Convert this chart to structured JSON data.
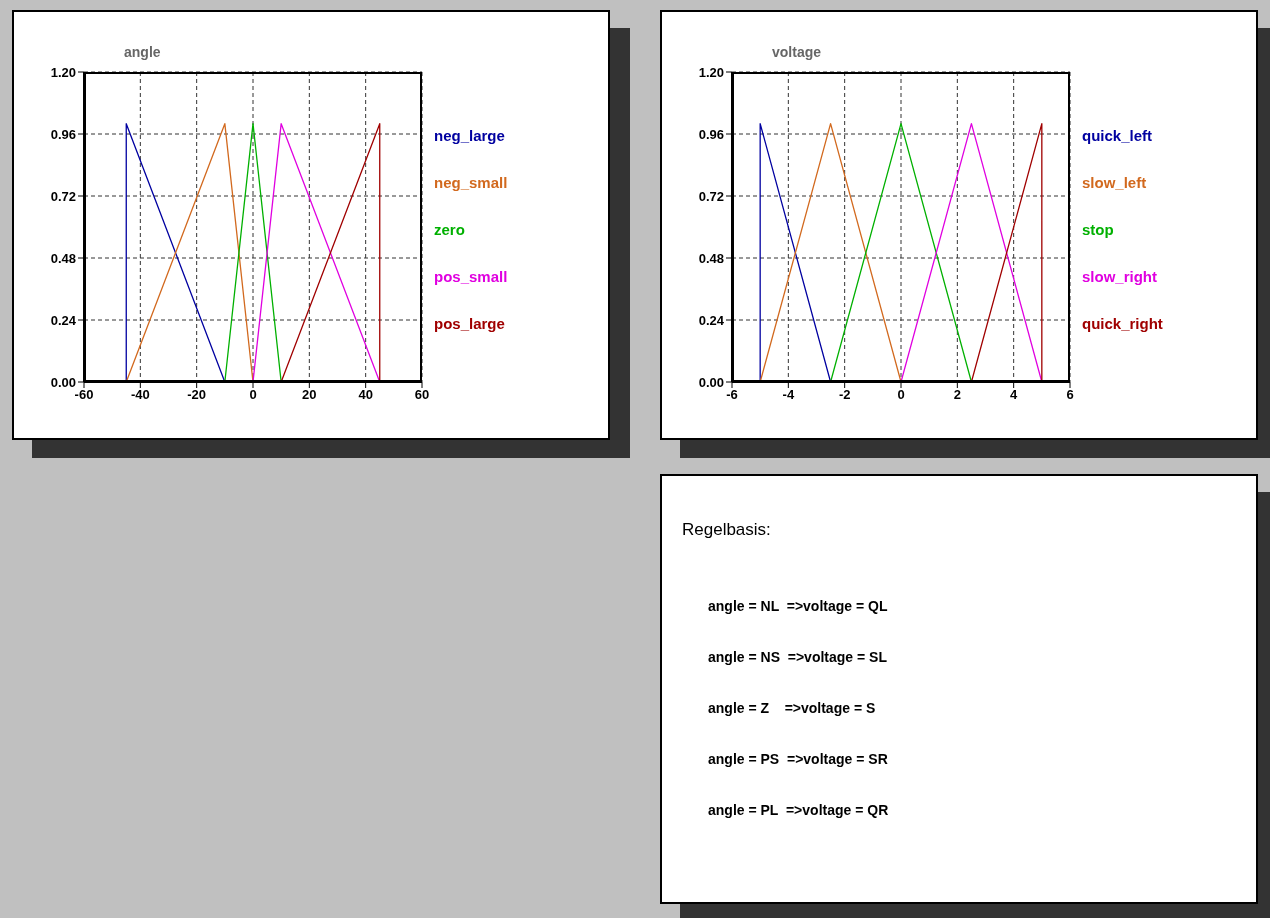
{
  "chart_data": [
    {
      "type": "line",
      "title": "angle",
      "xlim": [
        -60,
        60
      ],
      "xticks": [
        -60,
        -40,
        -20,
        0,
        20,
        40,
        60
      ],
      "ylim": [
        0,
        1.2
      ],
      "yticks": [
        {
          "value": 0,
          "label": "0.00"
        },
        {
          "value": 0.24,
          "label": "0.24"
        },
        {
          "value": 0.48,
          "label": "0.48"
        },
        {
          "value": 0.72,
          "label": "0.72"
        },
        {
          "value": 0.96,
          "label": "0.96"
        },
        {
          "value": 1.2,
          "label": "1.20"
        }
      ],
      "grid": true,
      "legend": "right",
      "line_style": "solid",
      "series": [
        {
          "name": "neg_large",
          "color": "#0000a0",
          "x": [
            -45,
            -45,
            -10
          ],
          "values": [
            0,
            1,
            0
          ]
        },
        {
          "name": "neg_small",
          "color": "#d2691e",
          "x": [
            -45,
            -10,
            0
          ],
          "values": [
            0,
            1,
            0
          ]
        },
        {
          "name": "zero",
          "color": "#00b000",
          "x": [
            -10,
            0,
            10
          ],
          "values": [
            0,
            1,
            0
          ]
        },
        {
          "name": "pos_small",
          "color": "#e000e0",
          "x": [
            0,
            10,
            45
          ],
          "values": [
            0,
            1,
            0
          ]
        },
        {
          "name": "pos_large",
          "color": "#a00000",
          "x": [
            10,
            45,
            45
          ],
          "values": [
            0,
            1,
            0
          ]
        }
      ]
    },
    {
      "type": "line",
      "title": "voltage",
      "xlim": [
        -6,
        6
      ],
      "xticks": [
        -6,
        -4,
        -2,
        0,
        2,
        4,
        6
      ],
      "ylim": [
        0,
        1.2
      ],
      "yticks": [
        {
          "value": 0,
          "label": "0.00"
        },
        {
          "value": 0.24,
          "label": "0.24"
        },
        {
          "value": 0.48,
          "label": "0.48"
        },
        {
          "value": 0.72,
          "label": "0.72"
        },
        {
          "value": 0.96,
          "label": "0.96"
        },
        {
          "value": 1.2,
          "label": "1.20"
        }
      ],
      "grid": true,
      "legend": "right",
      "line_style": "solid",
      "series": [
        {
          "name": "quick_left",
          "color": "#0000a0",
          "x": [
            -5,
            -5,
            -2.5
          ],
          "values": [
            0,
            1,
            0
          ]
        },
        {
          "name": "slow_left",
          "color": "#d2691e",
          "x": [
            -5,
            -2.5,
            0
          ],
          "values": [
            0,
            1,
            0
          ]
        },
        {
          "name": "stop",
          "color": "#00b000",
          "x": [
            -2.5,
            0,
            2.5
          ],
          "values": [
            0,
            1,
            0
          ]
        },
        {
          "name": "slow_right",
          "color": "#e000e0",
          "x": [
            0,
            2.5,
            5
          ],
          "values": [
            0,
            1,
            0
          ]
        },
        {
          "name": "quick_right",
          "color": "#a00000",
          "x": [
            2.5,
            5,
            5
          ],
          "values": [
            0,
            1,
            0
          ]
        }
      ]
    },
    {
      "type": "other",
      "title": "Regelbasis:",
      "annotations": [
        "angle = NL  =>voltage = QL",
        "angle = NS  =>voltage = SL",
        "angle = Z    =>voltage = S",
        "angle = PS  =>voltage = SR",
        "angle = PL  =>voltage = QR"
      ]
    }
  ]
}
